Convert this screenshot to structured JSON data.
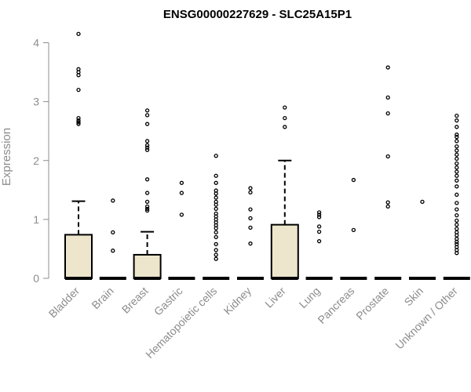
{
  "chart_data": {
    "type": "box",
    "title": "ENSG00000227629 - SLC25A15P1",
    "ylabel": "Expression",
    "xlabel": "",
    "ylim": [
      0,
      4.2
    ],
    "yticks": [
      0,
      1,
      2,
      3,
      4
    ],
    "grid": false,
    "box_fill": "#ede6cc",
    "categories": [
      "Bladder",
      "Brain",
      "Breast",
      "Gastric",
      "Hematopoietic cells",
      "Kidney",
      "Liver",
      "Lung",
      "Pancreas",
      "Prostate",
      "Skin",
      "Unknown / Other"
    ],
    "boxes": [
      {
        "category": "Bladder",
        "q1": 0,
        "median": 0,
        "q3": 0.74,
        "whisker_low": 0,
        "whisker_high": 1.31,
        "outliers": [
          4.15,
          3.55,
          3.5,
          3.45,
          3.2,
          2.72,
          2.68,
          2.65,
          2.62
        ]
      },
      {
        "category": "Brain",
        "q1": 0,
        "median": 0,
        "q3": 0,
        "whisker_low": 0,
        "whisker_high": 0,
        "outliers": [
          1.32,
          0.78,
          0.47
        ]
      },
      {
        "category": "Breast",
        "q1": 0,
        "median": 0,
        "q3": 0.4,
        "whisker_low": 0,
        "whisker_high": 0.79,
        "outliers": [
          2.85,
          2.77,
          2.62,
          2.33,
          2.26,
          2.22,
          2.18,
          1.68,
          1.45,
          1.3,
          1.22,
          1.18,
          1.15
        ]
      },
      {
        "category": "Gastric",
        "q1": 0,
        "median": 0,
        "q3": 0,
        "whisker_low": 0,
        "whisker_high": 0,
        "outliers": [
          1.62,
          1.45,
          1.08
        ]
      },
      {
        "category": "Hematopoietic cells",
        "q1": 0,
        "median": 0,
        "q3": 0,
        "whisker_low": 0,
        "whisker_high": 0,
        "outliers": [
          2.08,
          1.74,
          1.62,
          1.49,
          1.44,
          1.37,
          1.3,
          1.25,
          1.18,
          1.1,
          1.05,
          1.0,
          0.95,
          0.9,
          0.85,
          0.78,
          0.7,
          0.58,
          0.48,
          0.4,
          0.33
        ]
      },
      {
        "category": "Kidney",
        "q1": 0,
        "median": 0,
        "q3": 0,
        "whisker_low": 0,
        "whisker_high": 0,
        "outliers": [
          1.53,
          1.46,
          1.17,
          1.02,
          0.86,
          0.59
        ]
      },
      {
        "category": "Liver",
        "q1": 0,
        "median": 0,
        "q3": 0.91,
        "whisker_low": 0,
        "whisker_high": 2.0,
        "outliers": [
          2.9,
          2.72,
          2.57
        ]
      },
      {
        "category": "Lung",
        "q1": 0,
        "median": 0,
        "q3": 0,
        "whisker_low": 0,
        "whisker_high": 0,
        "outliers": [
          1.12,
          1.08,
          1.04,
          0.88,
          0.79,
          0.63
        ]
      },
      {
        "category": "Pancreas",
        "q1": 0,
        "median": 0,
        "q3": 0,
        "whisker_low": 0,
        "whisker_high": 0,
        "outliers": [
          1.67,
          0.82
        ]
      },
      {
        "category": "Prostate",
        "q1": 0,
        "median": 0,
        "q3": 0,
        "whisker_low": 0,
        "whisker_high": 0,
        "outliers": [
          3.58,
          3.07,
          2.8,
          2.07,
          1.29,
          1.22
        ]
      },
      {
        "category": "Skin",
        "q1": 0,
        "median": 0,
        "q3": 0,
        "whisker_low": 0,
        "whisker_high": 0,
        "outliers": [
          1.3
        ]
      },
      {
        "category": "Unknown / Other",
        "q1": 0,
        "median": 0,
        "q3": 0,
        "whisker_low": 0,
        "whisker_high": 0,
        "outliers": [
          2.76,
          2.68,
          2.57,
          2.44,
          2.4,
          2.33,
          2.24,
          2.17,
          2.1,
          2.03,
          1.95,
          1.88,
          1.81,
          1.74,
          1.66,
          1.56,
          1.42,
          1.28,
          1.17,
          1.07,
          0.98,
          0.91,
          0.84,
          0.78,
          0.73,
          0.67,
          0.62,
          0.58,
          0.53,
          0.48,
          0.43
        ]
      }
    ]
  }
}
